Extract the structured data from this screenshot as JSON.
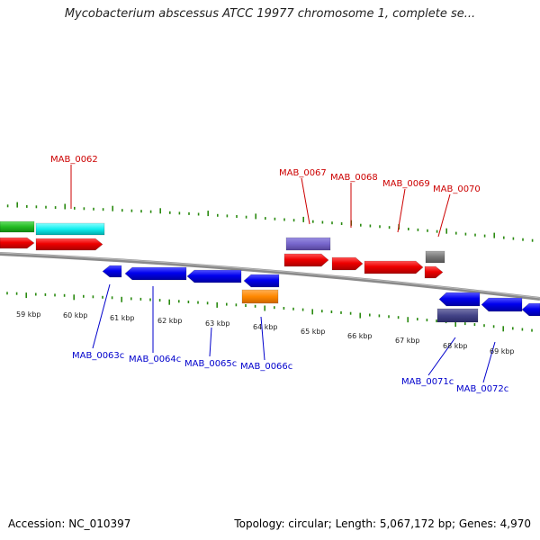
{
  "title": "Mycobacterium abscessus ATCC 19977 chromosome 1, complete se...",
  "footer": {
    "accession": "Accession: NC_010397",
    "topology": "Topology: circular;",
    "length": "Length: 5,067,172 bp;",
    "genes": "Genes: 4,970"
  },
  "colors": {
    "forward_label": "#cc0000",
    "reverse_label": "#0000cc",
    "tick": "#2a8a10",
    "backbone": "#888888"
  },
  "ruler_labels": [
    "59 kbp",
    "60 kbp",
    "61 kbp",
    "62 kbp",
    "63 kbp",
    "64 kbp",
    "65 kbp",
    "66 kbp",
    "67 kbp",
    "68 kbp",
    "69 kbp"
  ],
  "forward_gene_labels": [
    "MAB_0062",
    "MAB_0067",
    "MAB_0068",
    "MAB_0069",
    "MAB_0070"
  ],
  "reverse_gene_labels": [
    "MAB_0063c",
    "MAB_0064c",
    "MAB_0065c",
    "MAB_0066c",
    "MAB_0071c",
    "MAB_0072c"
  ],
  "feature_colors": {
    "cds_forward": "#ee0000",
    "cds_reverse": "#0000ee",
    "green": "#22bb22",
    "cyan": "#11eeee",
    "purple": "#7766cc",
    "gray": "#777777",
    "orange": "#ff8800",
    "dark_purple": "#444488"
  }
}
